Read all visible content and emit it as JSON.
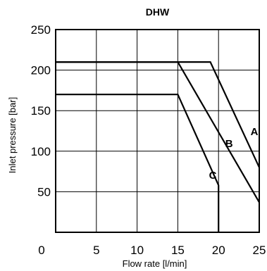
{
  "chart_data": {
    "type": "line",
    "title": "DHW",
    "xlabel": "Flow rate [l/min]",
    "ylabel": "Inlet pressure [bar]",
    "xlim": [
      0,
      25
    ],
    "ylim": [
      0,
      250
    ],
    "xticks": [
      0,
      5,
      10,
      15,
      20,
      25
    ],
    "yticks": [
      50,
      100,
      150,
      200,
      250
    ],
    "grid": true,
    "series": [
      {
        "name": "A",
        "x": [
          0,
          19,
          25
        ],
        "y": [
          210,
          210,
          80
        ]
      },
      {
        "name": "B",
        "x": [
          0,
          15,
          25
        ],
        "y": [
          210,
          210,
          37
        ]
      },
      {
        "name": "C",
        "x": [
          0,
          15,
          20,
          20
        ],
        "y": [
          170,
          170,
          58,
          0
        ]
      }
    ],
    "annotations": [
      {
        "text": "A",
        "x": 24.4,
        "y": 120
      },
      {
        "text": "B",
        "x": 21.3,
        "y": 105
      },
      {
        "text": "C",
        "x": 19.3,
        "y": 66
      }
    ]
  }
}
